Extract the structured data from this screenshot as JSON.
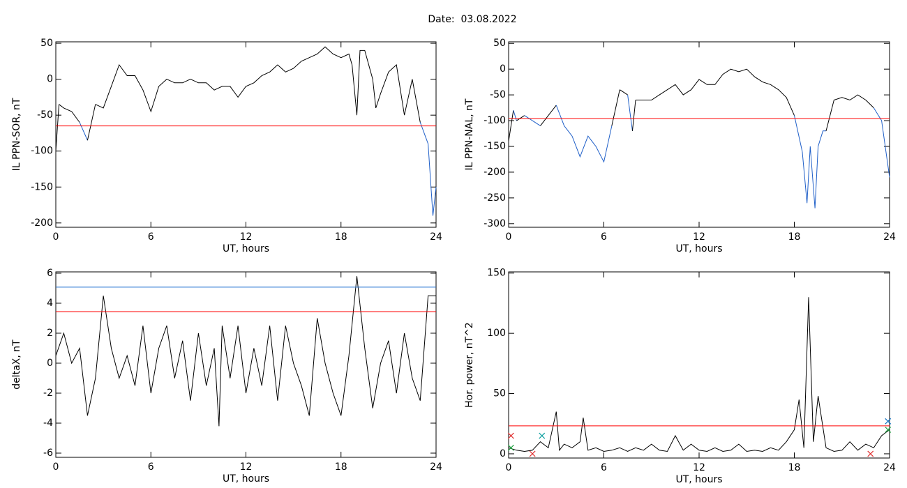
{
  "title": "Date:  03.08.2022",
  "chart_data": [
    {
      "type": "line",
      "ylabel": "IL PPN-SOR, nT",
      "xlabel": "UT, hours",
      "xlim": [
        0,
        24
      ],
      "xticks": [
        0,
        6,
        12,
        18,
        24
      ],
      "ylim": [
        -206,
        52
      ],
      "yticks": [
        50,
        0,
        -50,
        -100,
        -150,
        -200
      ],
      "series": [
        {
          "color": "#000000",
          "below_color": "#1f5fc8",
          "x": [
            0,
            0.2,
            0.5,
            1,
            1.5,
            2,
            2.5,
            3,
            3.5,
            4,
            4.5,
            5,
            5.5,
            6,
            6.5,
            7,
            7.5,
            8,
            8.5,
            9,
            9.5,
            10,
            10.5,
            11,
            11.5,
            12,
            12.5,
            13,
            13.5,
            14,
            14.5,
            15,
            15.5,
            16,
            16.5,
            17,
            17.5,
            18,
            18.5,
            18.7,
            19,
            19.2,
            19.5,
            20,
            20.2,
            20.5,
            21,
            21.5,
            22,
            22.5,
            23,
            23.5,
            23.8,
            24
          ],
          "values": [
            -100,
            -35,
            -40,
            -45,
            -60,
            -85,
            -35,
            -40,
            -10,
            20,
            5,
            5,
            -15,
            -45,
            -10,
            0,
            -5,
            -5,
            0,
            -5,
            -5,
            -15,
            -10,
            -10,
            -25,
            -10,
            -5,
            5,
            10,
            20,
            10,
            15,
            25,
            30,
            35,
            45,
            35,
            30,
            35,
            20,
            -50,
            40,
            40,
            0,
            -40,
            -20,
            10,
            20,
            -50,
            0,
            -60,
            -90,
            -190,
            -150
          ]
        }
      ],
      "hlines": [
        {
          "value": -65,
          "color": "#ff0000"
        }
      ]
    },
    {
      "type": "line",
      "ylabel": "IL PPN-NAL, nT",
      "xlabel": "UT, hours",
      "xlim": [
        0,
        24
      ],
      "xticks": [
        0,
        6,
        12,
        18,
        24
      ],
      "ylim": [
        -307,
        53
      ],
      "yticks": [
        50,
        0,
        -50,
        -100,
        -150,
        -200,
        -250,
        -300
      ],
      "series": [
        {
          "color": "#000000",
          "below_color": "#1f5fc8",
          "x": [
            0,
            0.3,
            0.5,
            1,
            1.5,
            2,
            2.5,
            3,
            3.5,
            4,
            4.5,
            5,
            5.5,
            6,
            6.5,
            7,
            7.5,
            7.8,
            8,
            8.5,
            9,
            9.5,
            10,
            10.5,
            11,
            11.5,
            12,
            12.5,
            13,
            13.5,
            14,
            14.5,
            15,
            15.5,
            16,
            16.5,
            17,
            17.5,
            18,
            18.5,
            18.8,
            19,
            19.3,
            19.5,
            19.8,
            20,
            20.5,
            21,
            21.5,
            22,
            22.5,
            23,
            23.5,
            24
          ],
          "values": [
            -140,
            -80,
            -100,
            -90,
            -100,
            -110,
            -90,
            -70,
            -110,
            -130,
            -170,
            -130,
            -150,
            -180,
            -110,
            -40,
            -50,
            -120,
            -60,
            -60,
            -60,
            -50,
            -40,
            -30,
            -50,
            -40,
            -20,
            -30,
            -30,
            -10,
            0,
            -5,
            0,
            -15,
            -25,
            -30,
            -40,
            -55,
            -90,
            -160,
            -260,
            -150,
            -270,
            -150,
            -120,
            -120,
            -60,
            -55,
            -60,
            -50,
            -60,
            -75,
            -100,
            -210
          ]
        }
      ],
      "hlines": [
        {
          "value": -96,
          "color": "#ff0000"
        }
      ]
    },
    {
      "type": "line",
      "ylabel": "deltaX, nT",
      "xlabel": "UT, hours",
      "xlim": [
        0,
        24
      ],
      "xticks": [
        0,
        6,
        12,
        18,
        24
      ],
      "ylim": [
        -6.28,
        6.09
      ],
      "yticks": [
        6,
        4,
        2,
        0,
        -2,
        -4,
        -6
      ],
      "series": [
        {
          "color": "#000000",
          "x": [
            0,
            0.5,
            1,
            1.5,
            2,
            2.5,
            3,
            3.5,
            4,
            4.5,
            5,
            5.5,
            6,
            6.5,
            7,
            7.5,
            8,
            8.5,
            9,
            9.5,
            10,
            10.3,
            10.5,
            11,
            11.5,
            12,
            12.5,
            13,
            13.5,
            14,
            14.5,
            15,
            15.5,
            16,
            16.5,
            17,
            17.5,
            18,
            18.5,
            19,
            19.5,
            20,
            20.5,
            21,
            21.5,
            22,
            22.5,
            23,
            23.5,
            24
          ],
          "values": [
            0.5,
            2,
            0,
            1,
            -3.5,
            -1,
            4.5,
            1,
            -1,
            0.5,
            -1.5,
            2.5,
            -2,
            1,
            2.5,
            -1,
            1.5,
            -2.5,
            2,
            -1.5,
            1,
            -4.2,
            2.5,
            -1,
            2.5,
            -2,
            1,
            -1.5,
            2.5,
            -2.5,
            2.5,
            0,
            -1.5,
            -3.5,
            3,
            0,
            -2,
            -3.5,
            0.5,
            5.8,
            1,
            -3,
            0,
            1.5,
            -2,
            2,
            -1,
            -2.5,
            4.5,
            4.5
          ]
        }
      ],
      "hlines": [
        {
          "value": 3.44,
          "color": "#ff0000"
        },
        {
          "value": 5.07,
          "color": "#1f6fd0"
        }
      ]
    },
    {
      "type": "line",
      "ylabel": "Hor. power, nT^2",
      "xlabel": "UT, hours",
      "xlim": [
        0,
        24
      ],
      "xticks": [
        0,
        6,
        12,
        18,
        24
      ],
      "ylim": [
        -3.5,
        151
      ],
      "yticks": [
        0,
        50,
        100,
        150
      ],
      "series": [
        {
          "color": "#000000",
          "x": [
            0,
            0.5,
            1,
            1.5,
            2,
            2.5,
            3,
            3.2,
            3.5,
            4,
            4.5,
            4.7,
            5,
            5.5,
            6,
            6.5,
            7,
            7.5,
            8,
            8.5,
            9,
            9.5,
            10,
            10.5,
            11,
            11.5,
            12,
            12.5,
            13,
            13.5,
            14,
            14.5,
            15,
            15.5,
            16,
            16.5,
            17,
            17.5,
            18,
            18.3,
            18.6,
            18.9,
            19.2,
            19.5,
            20,
            20.5,
            21,
            21.5,
            22,
            22.5,
            23,
            23.5,
            24
          ],
          "values": [
            5,
            3,
            2,
            3,
            10,
            5,
            35,
            3,
            8,
            5,
            10,
            30,
            3,
            5,
            2,
            3,
            5,
            2,
            5,
            3,
            8,
            3,
            2,
            15,
            3,
            8,
            3,
            2,
            5,
            2,
            3,
            8,
            2,
            3,
            2,
            5,
            3,
            10,
            20,
            45,
            5,
            130,
            10,
            48,
            5,
            2,
            3,
            10,
            3,
            8,
            5,
            15,
            20
          ]
        }
      ],
      "hlines": [
        {
          "value": 23.2,
          "color": "#ff0000"
        }
      ],
      "markers": {
        "x": [
          0.15,
          0.15,
          1.5,
          2.1,
          22.8,
          23.9,
          23.9
        ],
        "values": [
          15,
          5,
          0,
          15,
          0,
          27,
          20
        ],
        "colors": [
          "#e03030",
          "#20a040",
          "#e03030",
          "#10a0a0",
          "#e03030",
          "#1070c0",
          "#20a040"
        ]
      }
    }
  ]
}
